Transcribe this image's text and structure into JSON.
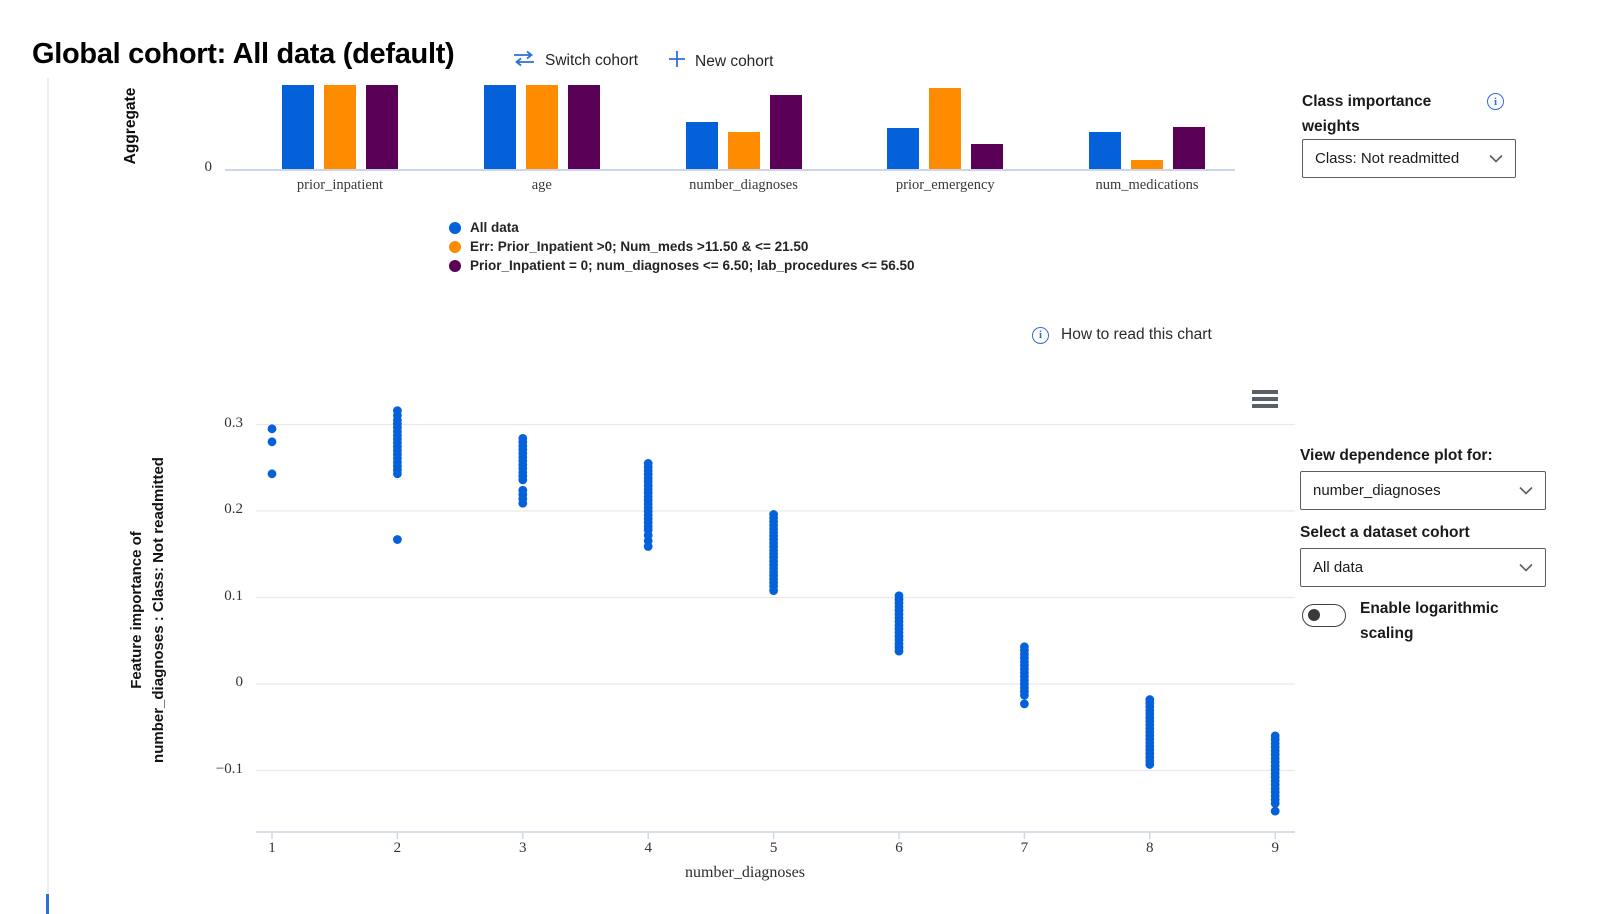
{
  "header": {
    "title": "Global cohort: All data (default)",
    "switch_cohort_label": "Switch cohort",
    "new_cohort_label": "New cohort"
  },
  "class_weights": {
    "label_line1": "Class importance",
    "label_line2": "weights",
    "selected": "Class: Not readmitted"
  },
  "how_to_read_label": "How to read this chart",
  "dependence_controls": {
    "view_label": "View dependence plot for:",
    "feature_selected": "number_diagnoses",
    "cohort_label": "Select a dataset cohort",
    "cohort_selected": "All data",
    "log_label": "Enable logarithmic scaling",
    "log_enabled": false
  },
  "colors": {
    "accent_blue": "#2f6fd8",
    "series_blue": "#0561da",
    "series_orange": "#ff8c00",
    "series_purple": "#5a0157",
    "axis_line": "#ccd6eb",
    "gridline": "#e9e9ea"
  },
  "chart_data": [
    {
      "type": "bar",
      "ylabel": "Aggregate",
      "y_tick_labels": [
        "0"
      ],
      "categories": [
        "prior_inpatient",
        "age",
        "number_diagnoses",
        "prior_emergency",
        "num_medications"
      ],
      "series": [
        {
          "name": "All data",
          "color": "#0561da",
          "values": [
            1.0,
            1.0,
            0.56,
            0.49,
            0.45
          ]
        },
        {
          "name": "Err: Prior_Inpatient >0; Num_meds >11.50 & <= 21.50",
          "color": "#ff8c00",
          "values": [
            1.0,
            1.0,
            0.45,
            0.96,
            0.12
          ]
        },
        {
          "name": "Prior_Inpatient = 0; num_diagnoses <= 6.50; lab_procedures <= 56.50",
          "color": "#5a0157",
          "values": [
            1.0,
            1.0,
            0.88,
            0.31,
            0.51
          ]
        }
      ],
      "note": "values are fractions of the visible plot height; chart is clipped at top so 1.0 bars run past the top edge"
    },
    {
      "type": "scatter",
      "xlabel": "number_diagnoses",
      "ylabel_line1": "Feature importance of",
      "ylabel_line2": "number_diagnoses : Class: Not readmitted",
      "x_ticks": [
        1,
        2,
        3,
        4,
        5,
        6,
        7,
        8,
        9
      ],
      "y_ticks": [
        0.3,
        0.2,
        0.1,
        0,
        -0.1
      ],
      "ylim": [
        -0.175,
        0.345
      ],
      "grid": "horizontal",
      "legend_position": "none",
      "point_color": "#0561da",
      "columns": [
        {
          "x": 1,
          "segments": [
            [
              0.295,
              0.295
            ],
            [
              0.28,
              0.28
            ],
            [
              0.243,
              0.243
            ]
          ]
        },
        {
          "x": 2,
          "segments": [
            [
              0.305,
              0.316
            ],
            [
              0.243,
              0.301
            ],
            [
              0.167,
              0.167
            ]
          ]
        },
        {
          "x": 3,
          "segments": [
            [
              0.236,
              0.284
            ],
            [
              0.209,
              0.224
            ]
          ]
        },
        {
          "x": 4,
          "segments": [
            [
              0.178,
              0.255
            ],
            [
              0.159,
              0.172
            ]
          ]
        },
        {
          "x": 5,
          "segments": [
            [
              0.113,
              0.196
            ],
            [
              0.108,
              0.108
            ]
          ]
        },
        {
          "x": 6,
          "segments": [
            [
              0.038,
              0.102
            ]
          ]
        },
        {
          "x": 7,
          "segments": [
            [
              -0.013,
              0.043
            ],
            [
              -0.023,
              -0.023
            ]
          ]
        },
        {
          "x": 8,
          "segments": [
            [
              -0.093,
              -0.018
            ]
          ]
        },
        {
          "x": 9,
          "segments": [
            [
              -0.138,
              -0.06
            ],
            [
              -0.147,
              -0.141
            ]
          ]
        }
      ]
    }
  ]
}
